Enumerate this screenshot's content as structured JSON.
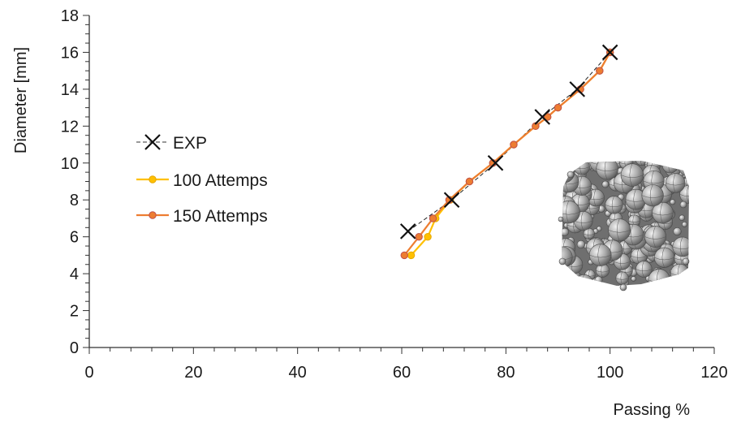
{
  "chart_data": {
    "type": "line",
    "xlabel": "Passing %",
    "ylabel": "Diameter [mm]",
    "xlim": [
      0,
      120
    ],
    "ylim": [
      0,
      18
    ],
    "x_ticks": [
      0,
      20,
      40,
      60,
      80,
      100,
      120
    ],
    "y_ticks": [
      0,
      2,
      4,
      6,
      8,
      10,
      12,
      14,
      16,
      18
    ],
    "grid": false,
    "legend_position": "center-left",
    "series": [
      {
        "name": "EXP",
        "color": "#222222",
        "line_style": "dashed",
        "marker": "x",
        "points": [
          [
            61.2,
            6.3
          ],
          [
            69.6,
            8.0
          ],
          [
            78.0,
            10.0
          ],
          [
            87.0,
            12.5
          ],
          [
            93.7,
            14.0
          ],
          [
            100.0,
            16.0
          ]
        ]
      },
      {
        "name": "100 Attemps",
        "color": "#ffc000",
        "line_style": "solid",
        "marker": "circle",
        "points": [
          [
            61.8,
            5.0
          ],
          [
            65.0,
            6.0
          ],
          [
            66.5,
            7.0
          ],
          [
            69.3,
            8.0
          ],
          [
            73.0,
            9.0
          ],
          [
            77.5,
            10.0
          ],
          [
            81.5,
            11.0
          ],
          [
            85.7,
            12.0
          ],
          [
            88.0,
            12.5
          ],
          [
            90.0,
            13.0
          ],
          [
            94.3,
            14.0
          ],
          [
            98.0,
            15.0
          ],
          [
            100.0,
            16.0
          ]
        ]
      },
      {
        "name": "150 Attemps",
        "color": "#ed7d31",
        "line_style": "solid",
        "marker": "circle",
        "points": [
          [
            60.5,
            5.0
          ],
          [
            63.3,
            6.0
          ],
          [
            66.0,
            7.0
          ],
          [
            69.1,
            8.0
          ],
          [
            73.0,
            9.0
          ],
          [
            77.5,
            10.0
          ],
          [
            81.5,
            11.0
          ],
          [
            85.7,
            12.0
          ],
          [
            88.0,
            12.5
          ],
          [
            90.0,
            13.0
          ],
          [
            94.3,
            14.0
          ],
          [
            98.0,
            15.0
          ],
          [
            100.0,
            16.0
          ]
        ]
      }
    ]
  }
}
